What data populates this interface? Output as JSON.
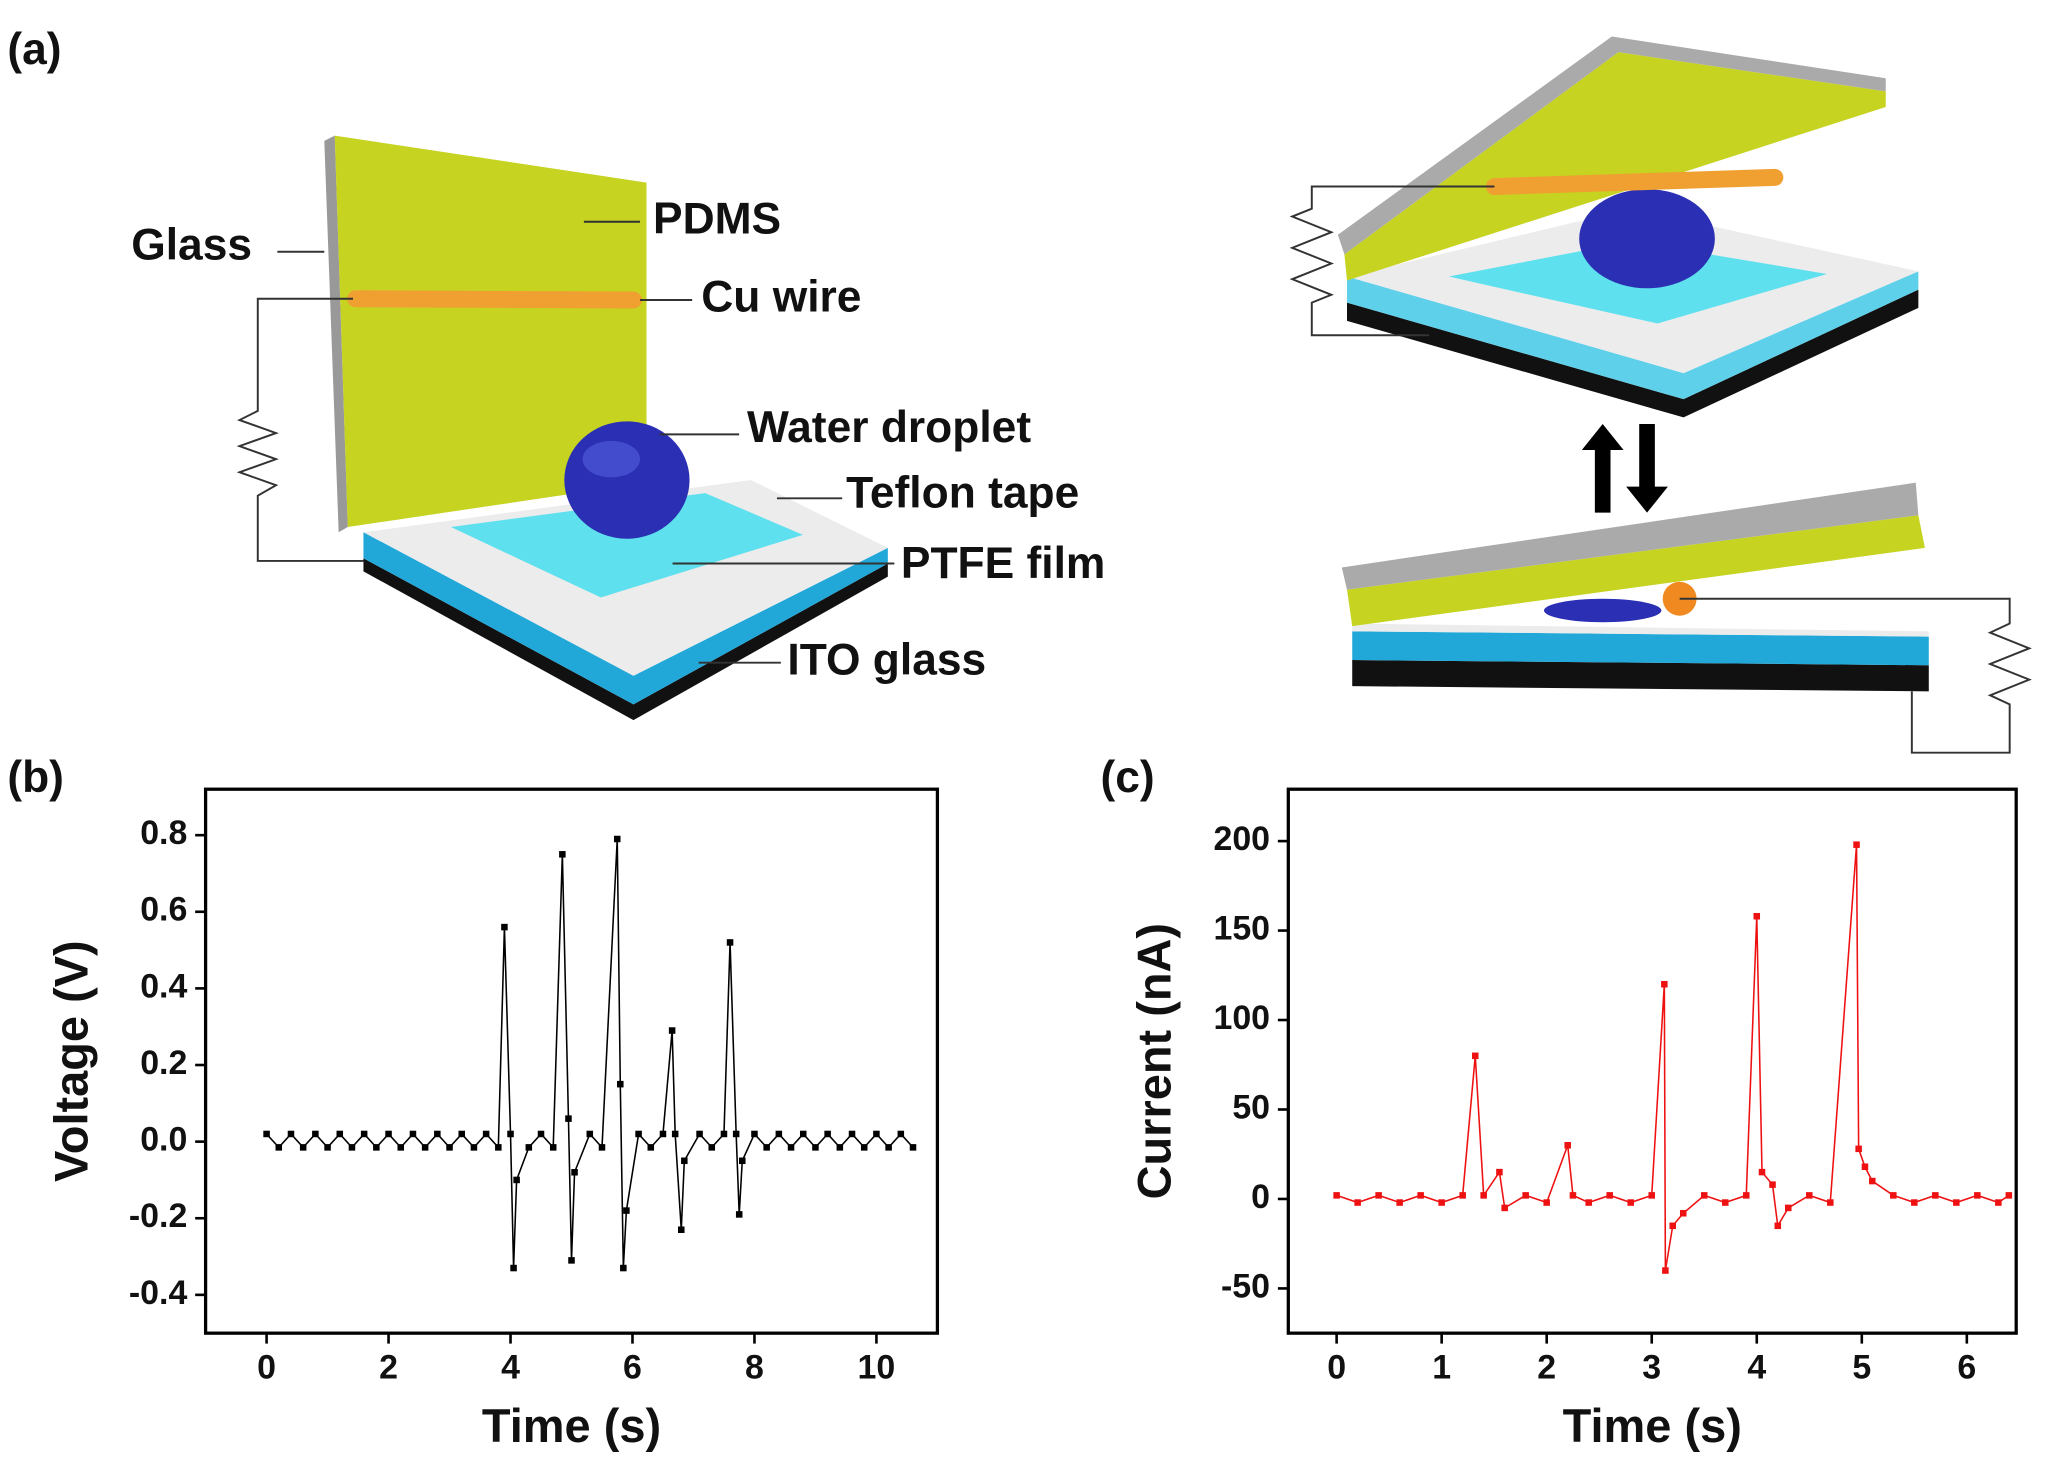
{
  "panels": [
    "(a)",
    "(b)",
    "(c)"
  ],
  "diagram": {
    "labels": [
      "Glass",
      "PDMS",
      "Cu wire",
      "Water droplet",
      "Teflon tape",
      "PTFE film",
      "ITO glass"
    ]
  },
  "chart_data": [
    {
      "type": "line",
      "xlabel": "Time (s)",
      "ylabel": "Voltage (V)",
      "xlim": [
        -1,
        11
      ],
      "ylim": [
        -0.5,
        0.92
      ],
      "xticks": [
        0,
        2,
        4,
        6,
        8,
        10
      ],
      "yticks": [
        -0.4,
        -0.2,
        {
          "value": 0,
          "label": "0.0"
        },
        0.2,
        0.4,
        0.6,
        0.8
      ],
      "x": [
        0,
        0.2,
        0.4,
        0.6,
        0.8,
        1.0,
        1.2,
        1.4,
        1.6,
        1.8,
        2.0,
        2.2,
        2.4,
        2.6,
        2.8,
        3.0,
        3.2,
        3.4,
        3.6,
        3.8,
        3.9,
        4.0,
        4.05,
        4.1,
        4.3,
        4.5,
        4.7,
        4.85,
        4.95,
        5.0,
        5.05,
        5.3,
        5.5,
        5.75,
        5.8,
        5.85,
        5.9,
        6.1,
        6.3,
        6.5,
        6.65,
        6.7,
        6.8,
        6.85,
        7.1,
        7.3,
        7.5,
        7.6,
        7.7,
        7.75,
        7.8,
        8.0,
        8.2,
        8.4,
        8.6,
        8.8,
        9.0,
        9.2,
        9.4,
        9.6,
        9.8,
        10.0,
        10.2,
        10.4,
        10.6
      ],
      "series": [
        {
          "color": "#000000",
          "values": [
            0.02,
            -0.015,
            0.02,
            -0.015,
            0.02,
            -0.015,
            0.02,
            -0.015,
            0.02,
            -0.015,
            0.02,
            -0.015,
            0.02,
            -0.015,
            0.02,
            -0.015,
            0.02,
            -0.015,
            0.02,
            -0.015,
            0.56,
            0.02,
            -0.33,
            -0.1,
            -0.015,
            0.02,
            -0.015,
            0.75,
            0.06,
            -0.31,
            -0.08,
            0.02,
            -0.015,
            0.79,
            0.15,
            -0.33,
            -0.18,
            0.02,
            -0.015,
            0.02,
            0.29,
            0.02,
            -0.23,
            -0.05,
            0.02,
            -0.015,
            0.02,
            0.52,
            0.02,
            -0.19,
            -0.05,
            0.02,
            -0.015,
            0.02,
            -0.015,
            0.02,
            -0.015,
            0.02,
            -0.015,
            0.02,
            -0.015,
            0.02,
            -0.015,
            0.02,
            -0.015
          ]
        }
      ]
    },
    {
      "type": "line",
      "xlabel": "Time (s)",
      "ylabel": "Current (nA)",
      "xlim": [
        -0.46,
        6.47
      ],
      "ylim": [
        -75,
        229
      ],
      "xticks": [
        0,
        1,
        2,
        3,
        4,
        5,
        6
      ],
      "yticks": [
        -50,
        0,
        50,
        100,
        150,
        200
      ],
      "x": [
        0,
        0.2,
        0.4,
        0.6,
        0.8,
        1.0,
        1.2,
        1.32,
        1.4,
        1.55,
        1.6,
        1.8,
        2.0,
        2.2,
        2.25,
        2.4,
        2.6,
        2.8,
        3.0,
        3.12,
        3.13,
        3.2,
        3.3,
        3.5,
        3.7,
        3.9,
        4.0,
        4.05,
        4.15,
        4.2,
        4.3,
        4.5,
        4.7,
        4.95,
        4.97,
        5.03,
        5.1,
        5.3,
        5.5,
        5.7,
        5.9,
        6.1,
        6.3,
        6.4
      ],
      "series": [
        {
          "color": "#ee1111",
          "values": [
            2,
            -2,
            2,
            -2,
            2,
            -2,
            2,
            80,
            2,
            15,
            -5,
            2,
            -2,
            30,
            2,
            -2,
            2,
            -2,
            2,
            120,
            -40,
            -15,
            -8,
            2,
            -2,
            2,
            158,
            15,
            8,
            -15,
            -5,
            2,
            -2,
            198,
            28,
            18,
            10,
            2,
            -2,
            2,
            -2,
            2,
            -2,
            2
          ]
        }
      ]
    }
  ]
}
